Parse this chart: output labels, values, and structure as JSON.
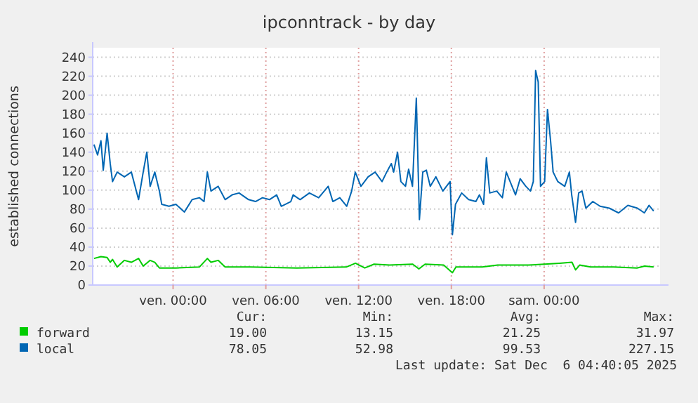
{
  "chart_data": {
    "type": "line",
    "title": "ipconntrack - by day",
    "ylabel": "established connections",
    "xlim": [
      "2025-12-04T18:48",
      "2025-12-06T07:30"
    ],
    "xticks": [
      {
        "value": "2025-12-05T00:00",
        "label": "ven. 00:00"
      },
      {
        "value": "2025-12-05T06:00",
        "label": "ven. 06:00"
      },
      {
        "value": "2025-12-05T12:00",
        "label": "ven. 12:00"
      },
      {
        "value": "2025-12-05T18:00",
        "label": "ven. 18:00"
      },
      {
        "value": "2025-12-06T00:00",
        "label": "sam. 00:00"
      }
    ],
    "ylim": [
      0,
      250
    ],
    "yticks": [
      0,
      20,
      40,
      60,
      80,
      100,
      120,
      140,
      160,
      180,
      200,
      220,
      240
    ],
    "grid": true,
    "legend": "bottom",
    "line_style": "solid",
    "series": [
      {
        "name": "forward",
        "color": "#00cc00",
        "x": [
          "2025-12-04T18:53",
          "2025-12-04T19:20",
          "2025-12-04T19:44",
          "2025-12-04T19:56",
          "2025-12-04T20:05",
          "2025-12-04T20:23",
          "2025-12-04T20:51",
          "2025-12-04T21:18",
          "2025-12-04T21:46",
          "2025-12-04T22:04",
          "2025-12-04T22:31",
          "2025-12-04T22:49",
          "2025-12-04T23:07",
          "2025-12-05T00:11",
          "2025-12-05T01:42",
          "2025-12-05T02:13",
          "2025-12-05T02:27",
          "2025-12-05T02:55",
          "2025-12-05T03:22",
          "2025-12-05T05:00",
          "2025-12-05T08:00",
          "2025-12-05T11:12",
          "2025-12-05T11:48",
          "2025-12-05T12:24",
          "2025-12-05T13:00",
          "2025-12-05T14:00",
          "2025-12-05T15:30",
          "2025-12-05T15:54",
          "2025-12-05T16:18",
          "2025-12-05T17:30",
          "2025-12-05T18:04",
          "2025-12-05T18:18",
          "2025-12-05T20:00",
          "2025-12-05T21:00",
          "2025-12-05T23:00",
          "2025-12-06T01:00",
          "2025-12-06T01:48",
          "2025-12-06T02:02",
          "2025-12-06T02:18",
          "2025-12-06T03:00",
          "2025-12-06T04:30",
          "2025-12-06T06:00",
          "2025-12-06T06:30",
          "2025-12-06T07:05"
        ],
        "values": [
          28,
          30,
          29,
          24,
          27,
          19,
          26,
          24,
          28,
          20,
          26,
          24,
          18,
          18,
          19,
          28,
          24,
          26,
          19,
          19,
          18,
          19,
          23,
          18,
          22,
          21,
          22,
          17,
          22,
          21,
          13,
          19,
          19,
          21,
          21,
          23,
          24,
          16,
          21,
          19,
          19,
          18,
          20,
          19
        ]
      },
      {
        "name": "local",
        "color": "#0066b3",
        "x": [
          "2025-12-04T18:53",
          "2025-12-04T19:07",
          "2025-12-04T19:20",
          "2025-12-04T19:29",
          "2025-12-04T19:44",
          "2025-12-04T19:56",
          "2025-12-04T20:05",
          "2025-12-04T20:23",
          "2025-12-04T20:51",
          "2025-12-04T21:18",
          "2025-12-04T21:46",
          "2025-12-04T22:04",
          "2025-12-04T22:18",
          "2025-12-04T22:31",
          "2025-12-04T22:49",
          "2025-12-04T23:07",
          "2025-12-04T23:16",
          "2025-12-04T23:44",
          "2025-12-05T00:11",
          "2025-12-05T00:44",
          "2025-12-05T01:14",
          "2025-12-05T01:42",
          "2025-12-05T02:00",
          "2025-12-05T02:13",
          "2025-12-05T02:27",
          "2025-12-05T02:55",
          "2025-12-05T03:22",
          "2025-12-05T03:49",
          "2025-12-05T04:16",
          "2025-12-05T04:53",
          "2025-12-05T05:20",
          "2025-12-05T05:47",
          "2025-12-05T06:14",
          "2025-12-05T06:42",
          "2025-12-05T07:00",
          "2025-12-05T07:37",
          "2025-12-05T07:46",
          "2025-12-05T08:13",
          "2025-12-05T08:49",
          "2025-12-05T09:25",
          "2025-12-05T10:02",
          "2025-12-05T10:20",
          "2025-12-05T10:47",
          "2025-12-05T11:14",
          "2025-12-05T11:33",
          "2025-12-05T11:47",
          "2025-12-05T12:09",
          "2025-12-05T12:37",
          "2025-12-05T13:04",
          "2025-12-05T13:31",
          "2025-12-05T13:49",
          "2025-12-05T14:07",
          "2025-12-05T14:16",
          "2025-12-05T14:31",
          "2025-12-05T14:44",
          "2025-12-05T15:02",
          "2025-12-05T15:14",
          "2025-12-05T15:29",
          "2025-12-05T15:44",
          "2025-12-05T15:56",
          "2025-12-05T16:09",
          "2025-12-05T16:23",
          "2025-12-05T16:38",
          "2025-12-05T17:00",
          "2025-12-05T17:27",
          "2025-12-05T17:55",
          "2025-12-05T18:04",
          "2025-12-05T18:16",
          "2025-12-05T18:40",
          "2025-12-05T19:07",
          "2025-12-05T19:35",
          "2025-12-05T19:49",
          "2025-12-05T20:05",
          "2025-12-05T20:16",
          "2025-12-05T20:29",
          "2025-12-05T20:56",
          "2025-12-05T21:18",
          "2025-12-05T21:33",
          "2025-12-05T21:51",
          "2025-12-05T22:09",
          "2025-12-05T22:27",
          "2025-12-05T22:49",
          "2025-12-05T23:07",
          "2025-12-05T23:18",
          "2025-12-05T23:27",
          "2025-12-05T23:37",
          "2025-12-05T23:46",
          "2025-12-06T00:02",
          "2025-12-06T00:13",
          "2025-12-06T00:25",
          "2025-12-06T00:35",
          "2025-12-06T00:53",
          "2025-12-06T01:20",
          "2025-12-06T01:38",
          "2025-12-06T01:47",
          "2025-12-06T02:02",
          "2025-12-06T02:14",
          "2025-12-06T02:27",
          "2025-12-06T02:42",
          "2025-12-06T03:09",
          "2025-12-06T03:37",
          "2025-12-06T04:13",
          "2025-12-06T04:49",
          "2025-12-06T05:25",
          "2025-12-06T06:02",
          "2025-12-06T06:29",
          "2025-12-06T06:47",
          "2025-12-06T07:05"
        ],
        "values": [
          148,
          137,
          152,
          121,
          160,
          128,
          109,
          119,
          114,
          119,
          90,
          119,
          140,
          104,
          119,
          99,
          85,
          83,
          85,
          77,
          90,
          92,
          88,
          119,
          99,
          104,
          90,
          95,
          97,
          90,
          88,
          92,
          90,
          95,
          83,
          88,
          95,
          90,
          97,
          92,
          104,
          88,
          92,
          83,
          99,
          119,
          104,
          114,
          119,
          109,
          119,
          128,
          119,
          140,
          109,
          104,
          122,
          104,
          197,
          69,
          119,
          121,
          104,
          114,
          99,
          109,
          53,
          85,
          97,
          90,
          88,
          95,
          85,
          134,
          97,
          99,
          92,
          119,
          107,
          95,
          112,
          104,
          99,
          109,
          226,
          214,
          104,
          109,
          185,
          152,
          119,
          109,
          104,
          119,
          95,
          66,
          97,
          99,
          81,
          88,
          83,
          81,
          76,
          84,
          81,
          76,
          84,
          78
        ]
      }
    ],
    "annotations": [
      "Cur:",
      "Min:",
      "Avg:",
      "Max:",
      "19.00",
      "13.15",
      "21.25",
      "31.97",
      "78.05",
      "52.98",
      "99.53",
      "227.15",
      "Last update: Sat Dec  6 04:40:05 2025"
    ]
  }
}
